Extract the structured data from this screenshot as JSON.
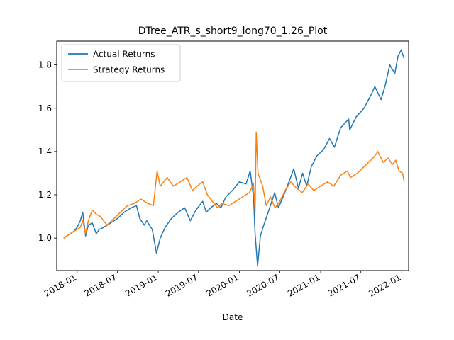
{
  "chart_data": {
    "type": "line",
    "title": "DTree_ATR_s_short9_long70_1.26_Plot",
    "xlabel": "Date",
    "ylabel": "",
    "grid": false,
    "legend_position": "top-left",
    "xlim": [
      "2017-10-01",
      "2022-02-01"
    ],
    "ylim": [
      0.85,
      1.91
    ],
    "x_ticks": [
      "2018-01",
      "2018-07",
      "2019-01",
      "2019-07",
      "2020-01",
      "2020-07",
      "2021-01",
      "2021-07",
      "2022-01"
    ],
    "y_ticks": [
      1.0,
      1.2,
      1.4,
      1.6,
      1.8
    ],
    "series": [
      {
        "name": "Actual Returns",
        "color": "#1f77b4",
        "points": [
          [
            "2017-11-01",
            1.0
          ],
          [
            "2017-11-15",
            1.01
          ],
          [
            "2017-12-01",
            1.02
          ],
          [
            "2017-12-15",
            1.03
          ],
          [
            "2018-01-01",
            1.05
          ],
          [
            "2018-01-15",
            1.08
          ],
          [
            "2018-01-26",
            1.12
          ],
          [
            "2018-02-08",
            1.01
          ],
          [
            "2018-02-20",
            1.06
          ],
          [
            "2018-03-10",
            1.07
          ],
          [
            "2018-03-28",
            1.02
          ],
          [
            "2018-04-10",
            1.04
          ],
          [
            "2018-05-01",
            1.05
          ],
          [
            "2018-06-01",
            1.07
          ],
          [
            "2018-07-01",
            1.09
          ],
          [
            "2018-08-01",
            1.12
          ],
          [
            "2018-09-01",
            1.14
          ],
          [
            "2018-09-25",
            1.15
          ],
          [
            "2018-10-10",
            1.09
          ],
          [
            "2018-10-30",
            1.06
          ],
          [
            "2018-11-10",
            1.08
          ],
          [
            "2018-12-05",
            1.04
          ],
          [
            "2018-12-24",
            0.93
          ],
          [
            "2019-01-10",
            1.0
          ],
          [
            "2019-02-01",
            1.05
          ],
          [
            "2019-03-01",
            1.09
          ],
          [
            "2019-04-01",
            1.12
          ],
          [
            "2019-04-30",
            1.14
          ],
          [
            "2019-05-25",
            1.08
          ],
          [
            "2019-06-20",
            1.13
          ],
          [
            "2019-07-20",
            1.17
          ],
          [
            "2019-08-05",
            1.12
          ],
          [
            "2019-08-25",
            1.14
          ],
          [
            "2019-09-20",
            1.16
          ],
          [
            "2019-10-10",
            1.14
          ],
          [
            "2019-11-01",
            1.19
          ],
          [
            "2019-12-01",
            1.22
          ],
          [
            "2020-01-01",
            1.26
          ],
          [
            "2020-01-31",
            1.25
          ],
          [
            "2020-02-19",
            1.31
          ],
          [
            "2020-03-05",
            1.19
          ],
          [
            "2020-03-12",
            1.02
          ],
          [
            "2020-03-23",
            0.87
          ],
          [
            "2020-04-05",
            1.01
          ],
          [
            "2020-04-20",
            1.06
          ],
          [
            "2020-05-10",
            1.12
          ],
          [
            "2020-06-08",
            1.21
          ],
          [
            "2020-06-25",
            1.14
          ],
          [
            "2020-07-20",
            1.2
          ],
          [
            "2020-08-15",
            1.27
          ],
          [
            "2020-09-02",
            1.32
          ],
          [
            "2020-09-23",
            1.23
          ],
          [
            "2020-10-12",
            1.3
          ],
          [
            "2020-10-30",
            1.24
          ],
          [
            "2020-11-20",
            1.33
          ],
          [
            "2020-12-15",
            1.38
          ],
          [
            "2021-01-15",
            1.41
          ],
          [
            "2021-02-10",
            1.46
          ],
          [
            "2021-03-04",
            1.42
          ],
          [
            "2021-04-01",
            1.51
          ],
          [
            "2021-05-07",
            1.55
          ],
          [
            "2021-05-12",
            1.5
          ],
          [
            "2021-06-10",
            1.56
          ],
          [
            "2021-07-15",
            1.6
          ],
          [
            "2021-08-15",
            1.66
          ],
          [
            "2021-09-02",
            1.7
          ],
          [
            "2021-09-30",
            1.64
          ],
          [
            "2021-10-20",
            1.71
          ],
          [
            "2021-11-08",
            1.8
          ],
          [
            "2021-12-01",
            1.76
          ],
          [
            "2021-12-15",
            1.84
          ],
          [
            "2021-12-30",
            1.87
          ],
          [
            "2022-01-05",
            1.85
          ],
          [
            "2022-01-12",
            1.83
          ]
        ]
      },
      {
        "name": "Strategy Returns",
        "color": "#ff7f0e",
        "points": [
          [
            "2017-11-01",
            1.0
          ],
          [
            "2017-11-15",
            1.01
          ],
          [
            "2017-12-01",
            1.02
          ],
          [
            "2017-12-15",
            1.03
          ],
          [
            "2018-01-01",
            1.04
          ],
          [
            "2018-01-15",
            1.05
          ],
          [
            "2018-01-26",
            1.08
          ],
          [
            "2018-02-08",
            1.02
          ],
          [
            "2018-02-20",
            1.08
          ],
          [
            "2018-03-10",
            1.13
          ],
          [
            "2018-03-28",
            1.11
          ],
          [
            "2018-04-15",
            1.1
          ],
          [
            "2018-05-15",
            1.06
          ],
          [
            "2018-06-15",
            1.09
          ],
          [
            "2018-07-15",
            1.12
          ],
          [
            "2018-08-15",
            1.15
          ],
          [
            "2018-09-15",
            1.16
          ],
          [
            "2018-10-15",
            1.18
          ],
          [
            "2018-11-15",
            1.16
          ],
          [
            "2018-12-10",
            1.15
          ],
          [
            "2018-12-27",
            1.31
          ],
          [
            "2019-01-10",
            1.24
          ],
          [
            "2019-02-10",
            1.28
          ],
          [
            "2019-03-10",
            1.24
          ],
          [
            "2019-04-10",
            1.26
          ],
          [
            "2019-05-10",
            1.28
          ],
          [
            "2019-06-04",
            1.22
          ],
          [
            "2019-06-25",
            1.24
          ],
          [
            "2019-07-20",
            1.26
          ],
          [
            "2019-08-10",
            1.2
          ],
          [
            "2019-09-01",
            1.17
          ],
          [
            "2019-09-25",
            1.14
          ],
          [
            "2019-10-15",
            1.16
          ],
          [
            "2019-11-15",
            1.15
          ],
          [
            "2019-12-15",
            1.17
          ],
          [
            "2020-01-15",
            1.19
          ],
          [
            "2020-02-15",
            1.21
          ],
          [
            "2020-03-05",
            1.25
          ],
          [
            "2020-03-12",
            1.12
          ],
          [
            "2020-03-17",
            1.49
          ],
          [
            "2020-03-25",
            1.3
          ],
          [
            "2020-04-15",
            1.24
          ],
          [
            "2020-05-01",
            1.15
          ],
          [
            "2020-05-20",
            1.19
          ],
          [
            "2020-06-10",
            1.14
          ],
          [
            "2020-07-01",
            1.17
          ],
          [
            "2020-07-25",
            1.22
          ],
          [
            "2020-08-20",
            1.26
          ],
          [
            "2020-09-15",
            1.23
          ],
          [
            "2020-10-10",
            1.21
          ],
          [
            "2020-11-05",
            1.25
          ],
          [
            "2020-12-01",
            1.22
          ],
          [
            "2021-01-01",
            1.24
          ],
          [
            "2021-02-01",
            1.26
          ],
          [
            "2021-03-01",
            1.24
          ],
          [
            "2021-04-01",
            1.29
          ],
          [
            "2021-05-01",
            1.31
          ],
          [
            "2021-05-15",
            1.28
          ],
          [
            "2021-06-15",
            1.3
          ],
          [
            "2021-07-15",
            1.33
          ],
          [
            "2021-08-15",
            1.36
          ],
          [
            "2021-09-02",
            1.38
          ],
          [
            "2021-09-15",
            1.4
          ],
          [
            "2021-10-10",
            1.35
          ],
          [
            "2021-11-01",
            1.37
          ],
          [
            "2021-11-20",
            1.34
          ],
          [
            "2021-12-05",
            1.36
          ],
          [
            "2021-12-20",
            1.31
          ],
          [
            "2022-01-05",
            1.3
          ],
          [
            "2022-01-12",
            1.26
          ]
        ]
      }
    ]
  }
}
